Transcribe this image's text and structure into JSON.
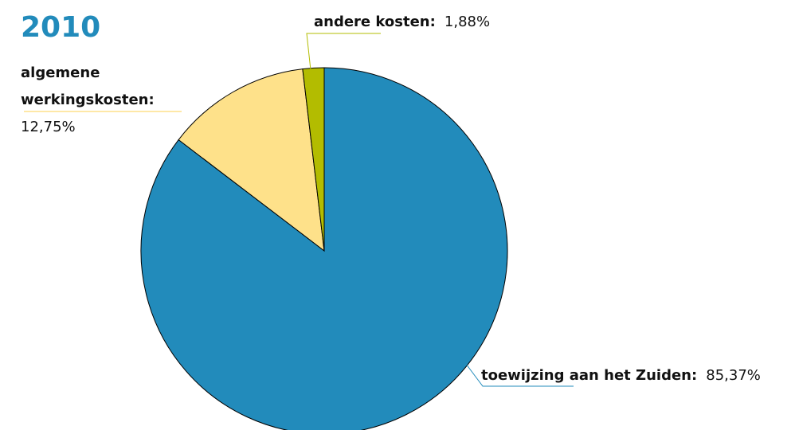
{
  "chart_data": {
    "type": "pie",
    "title": "2010",
    "slices": [
      {
        "label": "toewijzing aan het Zuiden:",
        "value_text": "85,37%",
        "value": 85.37,
        "color": "#228bbb"
      },
      {
        "label": "algemene werkingskosten:",
        "label_lines": [
          "algemene",
          "werkingskosten:"
        ],
        "value_text": "12,75%",
        "value": 12.75,
        "color": "#fee18a"
      },
      {
        "label": "andere kosten:",
        "value_text": "1,88%",
        "value": 1.88,
        "color": "#b3bc00"
      }
    ]
  },
  "colors": {
    "title": "#228bbb",
    "outline": "#000000",
    "leader_blue": "#228bbb",
    "leader_yellow": "#fee18a",
    "leader_green": "#b3bc00"
  }
}
